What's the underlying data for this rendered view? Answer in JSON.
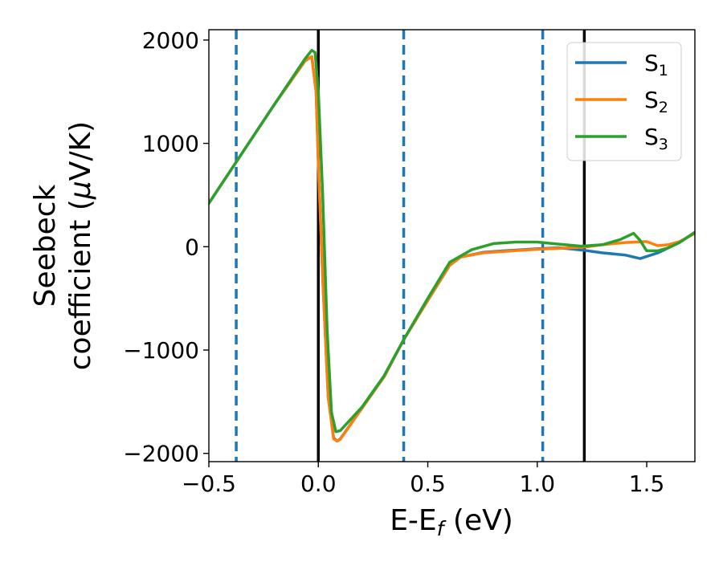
{
  "chart_data": {
    "type": "line",
    "xlabel": {
      "main": "E-E",
      "sub": "f",
      "tail": " (eV)"
    },
    "ylabel": {
      "line1": "Seebeck",
      "line2_pre": "coefficient  (",
      "line2_mu": "μ",
      "line2_post": "V/K)"
    },
    "xlim": [
      -0.5,
      1.72
    ],
    "ylim": [
      -2080,
      2100
    ],
    "xticks": [
      -0.5,
      0.0,
      0.5,
      1.0,
      1.5
    ],
    "xtick_labels": [
      "−0.5",
      "0.0",
      "0.5",
      "1.0",
      "1.5"
    ],
    "yticks": [
      -2000,
      -1000,
      0,
      1000,
      2000
    ],
    "ytick_labels": [
      "−2000",
      "−1000",
      "0",
      "1000",
      "2000"
    ],
    "grid": false,
    "legend_position": "top-right",
    "vlines_solid": [
      0.0,
      1.215
    ],
    "vlines_dashed": [
      -0.375,
      0.39,
      1.025
    ],
    "series": [
      {
        "name": "S",
        "sub": "1",
        "color": "#1f77b4",
        "points": [
          [
            -0.5,
            420
          ],
          [
            -0.375,
            820
          ],
          [
            -0.2,
            1380
          ],
          [
            -0.06,
            1800
          ],
          [
            -0.03,
            1840
          ],
          [
            -0.01,
            1500
          ],
          [
            0.0,
            800
          ],
          [
            0.02,
            -300
          ],
          [
            0.045,
            -1450
          ],
          [
            0.07,
            -1850
          ],
          [
            0.085,
            -1880
          ],
          [
            0.1,
            -1860
          ],
          [
            0.2,
            -1560
          ],
          [
            0.3,
            -1260
          ],
          [
            0.39,
            -900
          ],
          [
            0.5,
            -520
          ],
          [
            0.6,
            -180
          ],
          [
            0.65,
            -100
          ],
          [
            0.75,
            -55
          ],
          [
            0.85,
            -40
          ],
          [
            1.0,
            -20
          ],
          [
            1.1,
            -10
          ],
          [
            1.215,
            -35
          ],
          [
            1.3,
            -60
          ],
          [
            1.4,
            -80
          ],
          [
            1.47,
            -115
          ],
          [
            1.55,
            -60
          ],
          [
            1.65,
            40
          ],
          [
            1.72,
            140
          ]
        ]
      },
      {
        "name": "S",
        "sub": "2",
        "color": "#ff7f0e",
        "points": [
          [
            -0.5,
            420
          ],
          [
            -0.375,
            820
          ],
          [
            -0.2,
            1380
          ],
          [
            -0.06,
            1800
          ],
          [
            -0.03,
            1840
          ],
          [
            -0.01,
            1500
          ],
          [
            0.0,
            800
          ],
          [
            0.02,
            -300
          ],
          [
            0.045,
            -1450
          ],
          [
            0.07,
            -1860
          ],
          [
            0.085,
            -1880
          ],
          [
            0.1,
            -1865
          ],
          [
            0.2,
            -1560
          ],
          [
            0.3,
            -1260
          ],
          [
            0.39,
            -900
          ],
          [
            0.5,
            -520
          ],
          [
            0.6,
            -180
          ],
          [
            0.65,
            -100
          ],
          [
            0.75,
            -60
          ],
          [
            0.85,
            -45
          ],
          [
            1.0,
            -25
          ],
          [
            1.1,
            -15
          ],
          [
            1.215,
            -5
          ],
          [
            1.3,
            20
          ],
          [
            1.4,
            40
          ],
          [
            1.5,
            50
          ],
          [
            1.55,
            10
          ],
          [
            1.6,
            20
          ],
          [
            1.65,
            50
          ],
          [
            1.72,
            130
          ]
        ]
      },
      {
        "name": "S",
        "sub": "3",
        "color": "#2ca02c",
        "points": [
          [
            -0.5,
            420
          ],
          [
            -0.375,
            820
          ],
          [
            -0.2,
            1380
          ],
          [
            -0.06,
            1820
          ],
          [
            -0.03,
            1900
          ],
          [
            -0.015,
            1880
          ],
          [
            0.0,
            1500
          ],
          [
            0.02,
            500
          ],
          [
            0.04,
            -800
          ],
          [
            0.06,
            -1600
          ],
          [
            0.08,
            -1790
          ],
          [
            0.1,
            -1780
          ],
          [
            0.2,
            -1550
          ],
          [
            0.3,
            -1250
          ],
          [
            0.39,
            -900
          ],
          [
            0.5,
            -500
          ],
          [
            0.6,
            -150
          ],
          [
            0.7,
            -30
          ],
          [
            0.8,
            30
          ],
          [
            0.9,
            45
          ],
          [
            1.0,
            45
          ],
          [
            1.1,
            25
          ],
          [
            1.2,
            5
          ],
          [
            1.3,
            20
          ],
          [
            1.38,
            70
          ],
          [
            1.44,
            130
          ],
          [
            1.47,
            60
          ],
          [
            1.5,
            -40
          ],
          [
            1.55,
            -40
          ],
          [
            1.6,
            -10
          ],
          [
            1.65,
            40
          ],
          [
            1.72,
            140
          ]
        ]
      }
    ]
  }
}
